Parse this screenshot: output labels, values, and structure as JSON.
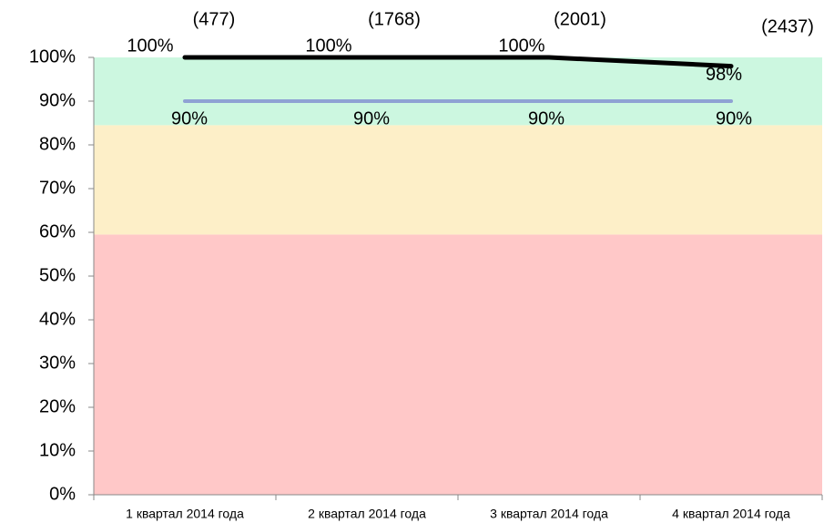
{
  "chart_data": {
    "type": "line",
    "categories": [
      "1 квартал 2014 года",
      "2 квартал 2014 года",
      "3 квартал 2014 года",
      "4 квартал 2014 года"
    ],
    "series": [
      {
        "color": "#000000",
        "values": [
          100,
          100,
          100,
          98
        ],
        "value_labels": [
          "100%",
          "100%",
          "100%",
          "98%"
        ]
      },
      {
        "color": "#8fa2d4",
        "values": [
          90,
          90,
          90,
          90
        ],
        "value_labels": [
          "90%",
          "90%",
          "90%",
          "90%"
        ]
      }
    ],
    "annotations": [
      "(477)",
      "(1768)",
      "(2001)",
      "(2437)"
    ],
    "bands": [
      {
        "from": 0,
        "to": 59.5,
        "color": "#ffc8c8"
      },
      {
        "from": 59.5,
        "to": 84.5,
        "color": "#fdefc8"
      },
      {
        "from": 84.5,
        "to": 100,
        "color": "#ccf7e0"
      }
    ],
    "ylim": [
      0,
      100
    ],
    "yticks": [
      {
        "value": 0,
        "label": "0%"
      },
      {
        "value": 10,
        "label": "10%"
      },
      {
        "value": 20,
        "label": "20%"
      },
      {
        "value": 30,
        "label": "30%"
      },
      {
        "value": 40,
        "label": "40%"
      },
      {
        "value": 50,
        "label": "50%"
      },
      {
        "value": 60,
        "label": "60%"
      },
      {
        "value": 70,
        "label": "70%"
      },
      {
        "value": 80,
        "label": "80%"
      },
      {
        "value": 90,
        "label": "90%"
      },
      {
        "value": 100,
        "label": "100%"
      }
    ],
    "grid": false
  }
}
